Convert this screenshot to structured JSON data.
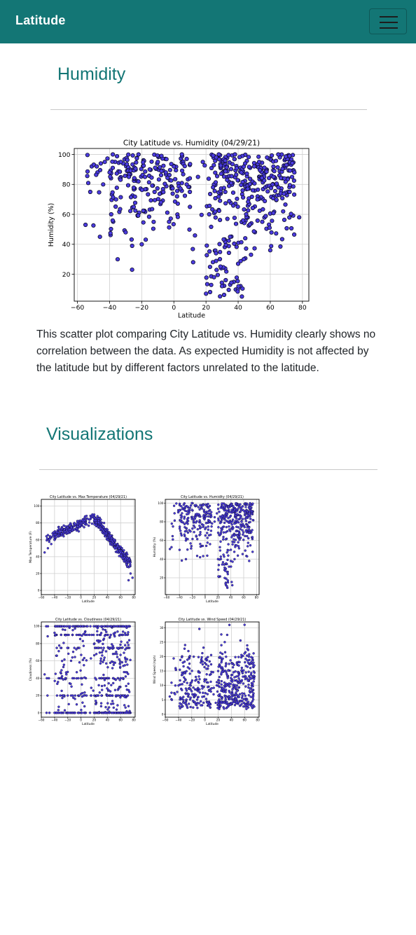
{
  "navbar": {
    "brand": "Latitude",
    "toggle_icon": "hamburger-menu-icon",
    "background": "#137675"
  },
  "section": {
    "title": "Humidity",
    "description": "This scatter plot comparing City Latitude vs. Humidity clearly shows no correlation between the data. As expected Humidity is not affected by the latitude but by different factors unrelated to the latitude."
  },
  "visualizations": {
    "title": "Visualizations"
  },
  "chart_data": [
    {
      "type": "scatter",
      "title": "City Latitude vs. Humidity (04/29/21)",
      "xlabel": "Latitude",
      "ylabel": "Humidity (%)",
      "xlim": [
        -62,
        84
      ],
      "ylim": [
        2,
        104
      ],
      "xticks": [
        -60,
        -40,
        -20,
        0,
        20,
        40,
        60,
        80
      ],
      "yticks": [
        20,
        40,
        60,
        80,
        100
      ],
      "grid": true,
      "marker_color": "#4b3be0",
      "approx_points": 560,
      "x": [
        -55,
        -52,
        -48,
        -46,
        -44,
        -43,
        -40,
        -39,
        -38,
        -36,
        -35,
        -33,
        -30,
        -28,
        -26,
        -25,
        -22,
        -20,
        -18,
        -15,
        -12,
        -10,
        -8,
        -5,
        -3,
        0,
        2,
        5,
        8,
        10,
        12,
        15,
        18,
        20,
        22,
        25,
        28,
        30,
        32,
        35,
        38,
        40,
        42,
        45,
        48,
        50,
        52,
        55,
        58,
        60,
        62,
        65,
        68,
        70,
        72,
        75,
        78
      ],
      "y": [
        53,
        75,
        92,
        45,
        80,
        95,
        88,
        60,
        100,
        70,
        30,
        95,
        48,
        85,
        23,
        65,
        100,
        40,
        85,
        90,
        75,
        95,
        68,
        88,
        55,
        92,
        72,
        100,
        80,
        65,
        28,
        85,
        95,
        7,
        60,
        18,
        100,
        12,
        75,
        45,
        100,
        27,
        88,
        60,
        33,
        92,
        70,
        55,
        98,
        36,
        85,
        100,
        62,
        93,
        75,
        88,
        58
      ]
    },
    {
      "type": "scatter",
      "title": "City Latitude vs. Max Temperature (04/29/21)",
      "xlabel": "Latitude",
      "ylabel": "Max Temperature (F)",
      "xlim": [
        -60,
        82
      ],
      "ylim": [
        -5,
        108
      ],
      "xticks": [
        -60,
        -40,
        -20,
        0,
        20,
        40,
        60,
        80
      ],
      "yticks": [
        0,
        20,
        40,
        60,
        80,
        100
      ],
      "grid": true,
      "marker_color": "#4b3be0",
      "approx_points": 560,
      "x": [
        -55,
        -50,
        -45,
        -40,
        -35,
        -30,
        -25,
        -20,
        -15,
        -10,
        -5,
        0,
        5,
        10,
        15,
        20,
        25,
        30,
        35,
        40,
        45,
        50,
        55,
        60,
        65,
        70,
        72,
        75,
        78
      ],
      "y": [
        45,
        50,
        55,
        60,
        65,
        70,
        72,
        75,
        78,
        80,
        82,
        80,
        83,
        85,
        86,
        90,
        88,
        84,
        80,
        72,
        65,
        60,
        52,
        45,
        35,
        28,
        12,
        20,
        15
      ]
    },
    {
      "type": "scatter",
      "title": "City Latitude vs. Humidity (04/29/21)",
      "xlabel": "Latitude",
      "ylabel": "Humidity (%)",
      "xlim": [
        -62,
        84
      ],
      "ylim": [
        2,
        104
      ],
      "xticks": [
        -60,
        -40,
        -20,
        0,
        20,
        40,
        60,
        80
      ],
      "yticks": [
        20,
        40,
        60,
        80,
        100
      ],
      "grid": true,
      "marker_color": "#4b3be0",
      "approx_points": 560,
      "x": [
        -50,
        -40,
        -30,
        -20,
        -10,
        0,
        10,
        20,
        30,
        40,
        50,
        60,
        70
      ],
      "y": [
        75,
        92,
        60,
        85,
        88,
        90,
        75,
        40,
        85,
        50,
        88,
        92,
        95
      ]
    },
    {
      "type": "scatter",
      "title": "City Latitude vs. Cloudiness (04/29/21)",
      "xlabel": "Latitude",
      "ylabel": "Cloudiness (%)",
      "xlim": [
        -60,
        82
      ],
      "ylim": [
        -5,
        105
      ],
      "xticks": [
        -60,
        -40,
        -20,
        0,
        20,
        40,
        60,
        80
      ],
      "yticks": [
        0,
        20,
        40,
        60,
        80,
        100
      ],
      "grid": true,
      "marker_color": "#4b3be0",
      "approx_points": 560,
      "x": [
        -50,
        -40,
        -30,
        -20,
        -10,
        0,
        10,
        20,
        30,
        40,
        50,
        60,
        70
      ],
      "y": [
        100,
        0,
        90,
        20,
        75,
        40,
        100,
        0,
        60,
        20,
        100,
        40,
        90
      ]
    },
    {
      "type": "scatter",
      "title": "City Latitude vs. Wind Speed (04/29/21)",
      "xlabel": "Latitude",
      "ylabel": "Wind Speed (mph)",
      "xlim": [
        -60,
        82
      ],
      "ylim": [
        -1,
        32
      ],
      "xticks": [
        -60,
        -40,
        -20,
        0,
        20,
        40,
        60,
        80
      ],
      "yticks": [
        0,
        5,
        10,
        15,
        20,
        25,
        30
      ],
      "grid": true,
      "marker_color": "#4b3be0",
      "approx_points": 560,
      "x": [
        -50,
        -40,
        -30,
        -20,
        -10,
        0,
        10,
        20,
        30,
        40,
        50,
        60,
        70
      ],
      "y": [
        5,
        10,
        24,
        8,
        6,
        12,
        9,
        15,
        25,
        7,
        11,
        31,
        18
      ]
    }
  ]
}
